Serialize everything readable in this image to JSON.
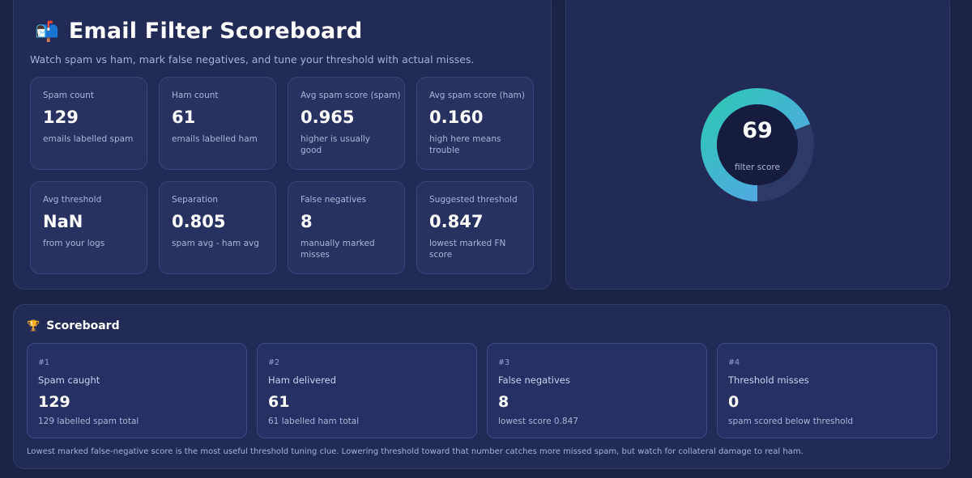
{
  "header": {
    "icon": "mailbox-icon",
    "title": "Email Filter Scoreboard",
    "subtitle": "Watch spam vs ham, mark false negatives, and tune your threshold with actual misses."
  },
  "stats": [
    {
      "label": "Spam count",
      "value": "129",
      "hint": "emails labelled spam"
    },
    {
      "label": "Ham count",
      "value": "61",
      "hint": "emails labelled ham"
    },
    {
      "label": "Avg spam score (spam)",
      "value": "0.965",
      "hint": "higher is usually good"
    },
    {
      "label": "Avg spam score (ham)",
      "value": "0.160",
      "hint": "high here means trouble"
    },
    {
      "label": "Avg threshold",
      "value": "NaN",
      "hint": "from your logs"
    },
    {
      "label": "Separation",
      "value": "0.805",
      "hint": "spam avg - ham avg"
    },
    {
      "label": "False negatives",
      "value": "8",
      "hint": "manually marked misses"
    },
    {
      "label": "Suggested threshold",
      "value": "0.847",
      "hint": "lowest marked FN score"
    }
  ],
  "gauge": {
    "value": "69",
    "fraction": 0.69,
    "caption": "filter score",
    "colors": {
      "start": "#2ec8b4",
      "end": "#5aa0ee",
      "track": "#2d3966",
      "center": "#151c3e"
    }
  },
  "scoreboard": {
    "icon": "trophy-icon",
    "title": "Scoreboard",
    "cards": [
      {
        "rank": "#1",
        "label": "Spam caught",
        "value": "129",
        "sub": "129 labelled spam total"
      },
      {
        "rank": "#2",
        "label": "Ham delivered",
        "value": "61",
        "sub": "61 labelled ham total"
      },
      {
        "rank": "#3",
        "label": "False negatives",
        "value": "8",
        "sub": "lowest score 0.847"
      },
      {
        "rank": "#4",
        "label": "Threshold misses",
        "value": "0",
        "sub": "spam scored below threshold"
      }
    ],
    "note": "Lowest marked false-negative score is the most useful threshold tuning clue. Lowering threshold toward that number catches more missed spam, but watch for collateral damage to real ham."
  }
}
